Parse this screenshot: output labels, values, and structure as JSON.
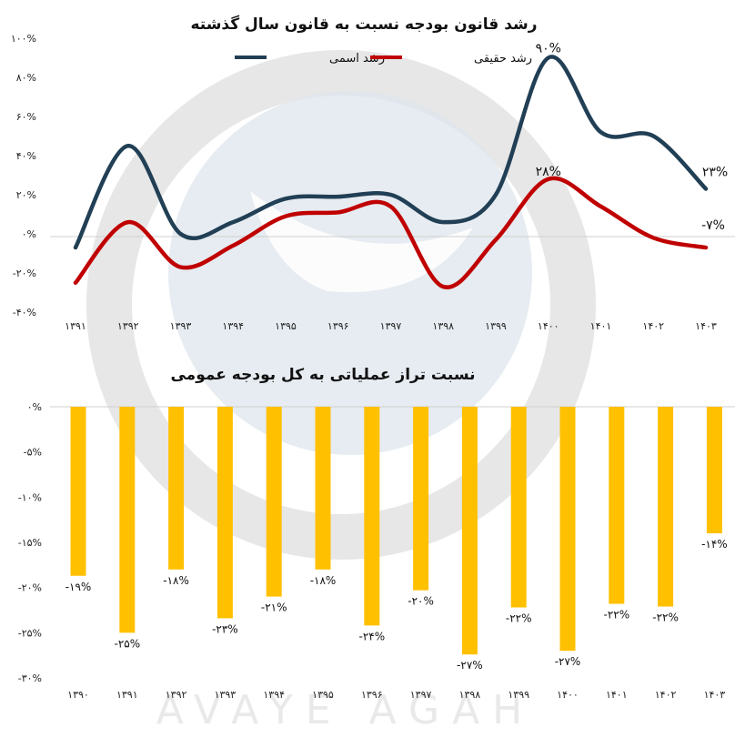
{
  "watermark": {
    "text": "AVAYE AGAH"
  },
  "chart_data": [
    {
      "type": "line",
      "title": "رشد قانون بودجه نسبت به قانون سال گذشته",
      "categories": [
        "۱۳۹۱",
        "۱۳۹۲",
        "۱۳۹۳",
        "۱۳۹۴",
        "۱۳۹۵",
        "۱۳۹۶",
        "۱۳۹۷",
        "۱۳۹۸",
        "۱۳۹۹",
        "۱۴۰۰",
        "۱۴۰۱",
        "۱۴۰۲",
        "۱۴۰۳"
      ],
      "ylim": [
        -40,
        100
      ],
      "yticks": [
        -40,
        -20,
        0,
        20,
        40,
        60,
        80,
        100
      ],
      "ytick_labels": [
        "-۴۰%",
        "-۲۰%",
        "۰%",
        "۲۰%",
        "۴۰%",
        "۶۰%",
        "۸۰%",
        "۱۰۰%"
      ],
      "legend_position": "top",
      "series": [
        {
          "name": "رشد اسمی",
          "color": "#213f55",
          "values": [
            -7,
            45,
            0,
            6,
            18,
            19,
            20,
            6,
            20,
            90,
            52,
            50,
            23
          ]
        },
        {
          "name": "رشد حقیقی",
          "color": "#c00000",
          "values": [
            -25,
            6,
            -17,
            -6,
            9,
            11,
            14,
            -27,
            -3,
            28,
            14,
            -2,
            -7
          ]
        }
      ],
      "annotations": [
        {
          "series": 0,
          "index": 9,
          "text": "۹۰%"
        },
        {
          "series": 0,
          "index": 12,
          "text": "۲۳%"
        },
        {
          "series": 1,
          "index": 9,
          "text": "۲۸%"
        },
        {
          "series": 1,
          "index": 12,
          "text": "-۷%"
        }
      ]
    },
    {
      "type": "bar",
      "title": "نسبت تراز عملیاتی به کل بودجه عمومی",
      "categories": [
        "۱۳۹۰",
        "۱۳۹۱",
        "۱۳۹۲",
        "۱۳۹۳",
        "۱۳۹۴",
        "۱۳۹۵",
        "۱۳۹۶",
        "۱۳۹۷",
        "۱۳۹۸",
        "۱۳۹۹",
        "۱۴۰۰",
        "۱۴۰۱",
        "۱۴۰۲",
        "۱۴۰۳"
      ],
      "values": [
        -18.7,
        -25,
        -18,
        -23.4,
        -21,
        -18,
        -24.2,
        -20.3,
        -27.4,
        -22.2,
        -27,
        -21.8,
        -22.1,
        -14
      ],
      "value_labels": [
        "-۱۹%",
        "-۲۵%",
        "-۱۸%",
        "-۲۳%",
        "-۲۱%",
        "-۱۸%",
        "-۲۴%",
        "-۲۰%",
        "-۲۷%",
        "-۲۲%",
        "-۲۷%",
        "-۲۲%",
        "-۲۲%",
        "-۱۴%"
      ],
      "ylim": [
        -30,
        0
      ],
      "yticks": [
        0,
        -5,
        -10,
        -15,
        -20,
        -25,
        -30
      ],
      "ytick_labels": [
        "۰%",
        "-۵%",
        "-۱۰%",
        "-۱۵%",
        "-۲۰%",
        "-۲۵%",
        "-۳۰%"
      ],
      "color": "#ffc000"
    }
  ]
}
